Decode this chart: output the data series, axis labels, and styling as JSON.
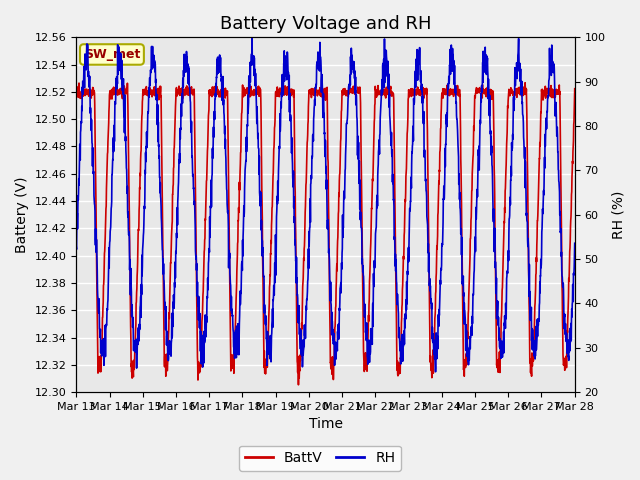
{
  "title": "Battery Voltage and RH",
  "xlabel": "Time",
  "ylabel_left": "Battery (V)",
  "ylabel_right": "RH (%)",
  "left_ylim": [
    12.3,
    12.56
  ],
  "right_ylim": [
    20,
    100
  ],
  "left_yticks": [
    12.3,
    12.32,
    12.34,
    12.36,
    12.38,
    12.4,
    12.42,
    12.44,
    12.46,
    12.48,
    12.5,
    12.52,
    12.54,
    12.56
  ],
  "right_yticks": [
    20,
    30,
    40,
    50,
    60,
    70,
    80,
    90,
    100
  ],
  "x_tick_labels": [
    "Mar 13",
    "Mar 14",
    "Mar 15",
    "Mar 16",
    "Mar 17",
    "Mar 18",
    "Mar 19",
    "Mar 20",
    "Mar 21",
    "Mar 22",
    "Mar 23",
    "Mar 24",
    "Mar 25",
    "Mar 26",
    "Mar 27",
    "Mar 28"
  ],
  "battv_color": "#CC0000",
  "rh_color": "#0000CC",
  "battv_label": "BattV",
  "rh_label": "RH",
  "annotation_text": "SW_met",
  "annotation_bg": "#FFFFCC",
  "annotation_edge": "#AAAA00",
  "annotation_text_color": "#990000",
  "plot_bg_color": "#E8E8E8",
  "grid_color": "#FFFFFF",
  "title_fontsize": 13,
  "axis_fontsize": 10,
  "tick_fontsize": 8,
  "legend_fontsize": 10,
  "line_width": 1.2,
  "num_points": 2000
}
